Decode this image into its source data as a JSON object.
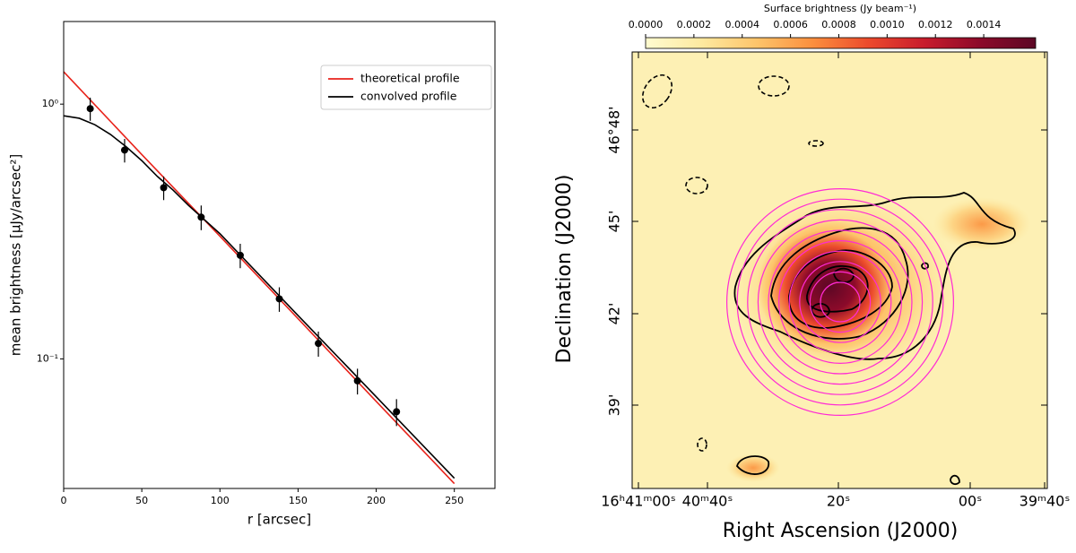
{
  "chart_data": [
    {
      "type": "line",
      "xlabel": "r [arcsec]",
      "ylabel": "mean brightness [μJy/arcsec²]",
      "xlim": [
        0,
        276
      ],
      "xticks": [
        0,
        50,
        100,
        150,
        200,
        250
      ],
      "ylim": [
        0.031,
        2.11
      ],
      "yscale": "log",
      "yticks": [
        {
          "value": 1,
          "label": "10⁰"
        },
        {
          "value": 0.1,
          "label": "10⁻¹"
        }
      ],
      "legend": "upper right",
      "series": [
        {
          "name": "theoretical profile",
          "color": "#e8231b",
          "x": [
            0,
            50,
            100,
            150,
            200,
            250
          ],
          "values": [
            1.34,
            0.634,
            0.303,
            0.1438,
            0.0681,
            0.0324
          ]
        },
        {
          "name": "convolved profile",
          "color": "#000000",
          "x": [
            0,
            10,
            20,
            30,
            40,
            50,
            60,
            70,
            80,
            100,
            150,
            200,
            250
          ],
          "values": [
            0.9,
            0.88,
            0.83,
            0.76,
            0.68,
            0.6,
            0.52,
            0.46,
            0.4,
            0.31,
            0.148,
            0.071,
            0.034
          ]
        }
      ],
      "points": {
        "color": "#000000",
        "x": [
          17,
          39,
          64,
          88,
          113,
          138,
          163,
          188,
          213
        ],
        "values": [
          0.96,
          0.66,
          0.47,
          0.36,
          0.255,
          0.172,
          0.115,
          0.082,
          0.062
        ],
        "errors": [
          0.1,
          0.07,
          0.05,
          0.04,
          0.028,
          0.019,
          0.013,
          0.0095,
          0.0075
        ]
      }
    },
    {
      "type": "image",
      "xlabel": "Right Ascension (J2000)",
      "ylabel": "Declination (J2000)",
      "xtick_labels": [
        "16ʰ41ᵐ00ˢ",
        "40ᵐ40ˢ",
        "20ˢ",
        "00ˢ",
        "39ᵐ40ˢ"
      ],
      "ytick_labels": [
        "46°48'",
        "45'",
        "42'",
        "39'"
      ],
      "colorbar": {
        "label": "Surface brightness (Jy beam⁻¹)",
        "clim": [
          0,
          0.001615
        ],
        "ticks": [
          {
            "value": 0,
            "label": "0.0000"
          },
          {
            "value": 0.0002,
            "label": "0.0002"
          },
          {
            "value": 0.0004,
            "label": "0.0004"
          },
          {
            "value": 0.0006,
            "label": "0.0006"
          },
          {
            "value": 0.0008,
            "label": "0.0008"
          },
          {
            "value": 0.001,
            "label": "0.0010"
          },
          {
            "value": 0.0012,
            "label": "0.0012"
          },
          {
            "value": 0.0014,
            "label": "0.0014"
          }
        ],
        "colors": [
          "#fffbd0",
          "#fde9a0",
          "#fdc46a",
          "#fb8f3e",
          "#ec4a2c",
          "#c81c2c",
          "#8c0a2a",
          "#5c0825"
        ]
      }
    }
  ]
}
